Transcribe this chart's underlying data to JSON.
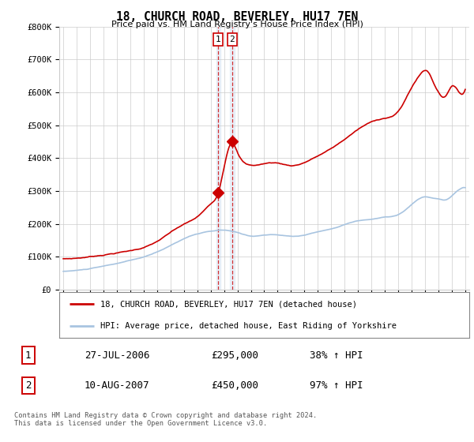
{
  "title": "18, CHURCH ROAD, BEVERLEY, HU17 7EN",
  "subtitle": "Price paid vs. HM Land Registry's House Price Index (HPI)",
  "ylim": [
    0,
    800000
  ],
  "yticks": [
    0,
    100000,
    200000,
    300000,
    400000,
    500000,
    600000,
    700000,
    800000
  ],
  "ytick_labels": [
    "£0",
    "£100K",
    "£200K",
    "£300K",
    "£400K",
    "£500K",
    "£600K",
    "£700K",
    "£800K"
  ],
  "background_color": "#ffffff",
  "grid_color": "#cccccc",
  "hpi_color": "#a8c4e0",
  "price_color": "#cc0000",
  "sale1_date": 2006.57,
  "sale1_price": 295000,
  "sale1_label": "1",
  "sale1_text": "27-JUL-2006",
  "sale1_amount": "£295,000",
  "sale1_hpi": "38% ↑ HPI",
  "sale2_date": 2007.61,
  "sale2_price": 450000,
  "sale2_label": "2",
  "sale2_text": "10-AUG-2007",
  "sale2_amount": "£450,000",
  "sale2_hpi": "97% ↑ HPI",
  "legend_line1": "18, CHURCH ROAD, BEVERLEY, HU17 7EN (detached house)",
  "legend_line2": "HPI: Average price, detached house, East Riding of Yorkshire",
  "footer": "Contains HM Land Registry data © Crown copyright and database right 2024.\nThis data is licensed under the Open Government Licence v3.0."
}
